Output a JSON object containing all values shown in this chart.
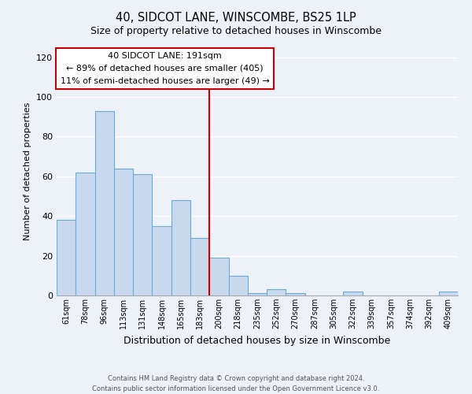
{
  "title": "40, SIDCOT LANE, WINSCOMBE, BS25 1LP",
  "subtitle": "Size of property relative to detached houses in Winscombe",
  "xlabel": "Distribution of detached houses by size in Winscombe",
  "ylabel": "Number of detached properties",
  "bar_labels": [
    "61sqm",
    "78sqm",
    "96sqm",
    "113sqm",
    "131sqm",
    "148sqm",
    "165sqm",
    "183sqm",
    "200sqm",
    "218sqm",
    "235sqm",
    "252sqm",
    "270sqm",
    "287sqm",
    "305sqm",
    "322sqm",
    "339sqm",
    "357sqm",
    "374sqm",
    "392sqm",
    "409sqm"
  ],
  "bar_values": [
    38,
    62,
    93,
    64,
    61,
    35,
    48,
    29,
    19,
    10,
    1,
    3,
    1,
    0,
    0,
    2,
    0,
    0,
    0,
    0,
    2
  ],
  "bar_color": "#c8d9ee",
  "bar_edge_color": "#6aaad4",
  "vline_x": 8.0,
  "vline_color": "#cc0000",
  "ylim": [
    0,
    125
  ],
  "yticks": [
    0,
    20,
    40,
    60,
    80,
    100,
    120
  ],
  "annotation_title": "40 SIDCOT LANE: 191sqm",
  "annotation_line1": "← 89% of detached houses are smaller (405)",
  "annotation_line2": "11% of semi-detached houses are larger (49) →",
  "annotation_box_color": "#ffffff",
  "annotation_box_edge": "#cc0000",
  "footer1": "Contains HM Land Registry data © Crown copyright and database right 2024.",
  "footer2": "Contains public sector information licensed under the Open Government Licence v3.0.",
  "background_color": "#edf2f9"
}
